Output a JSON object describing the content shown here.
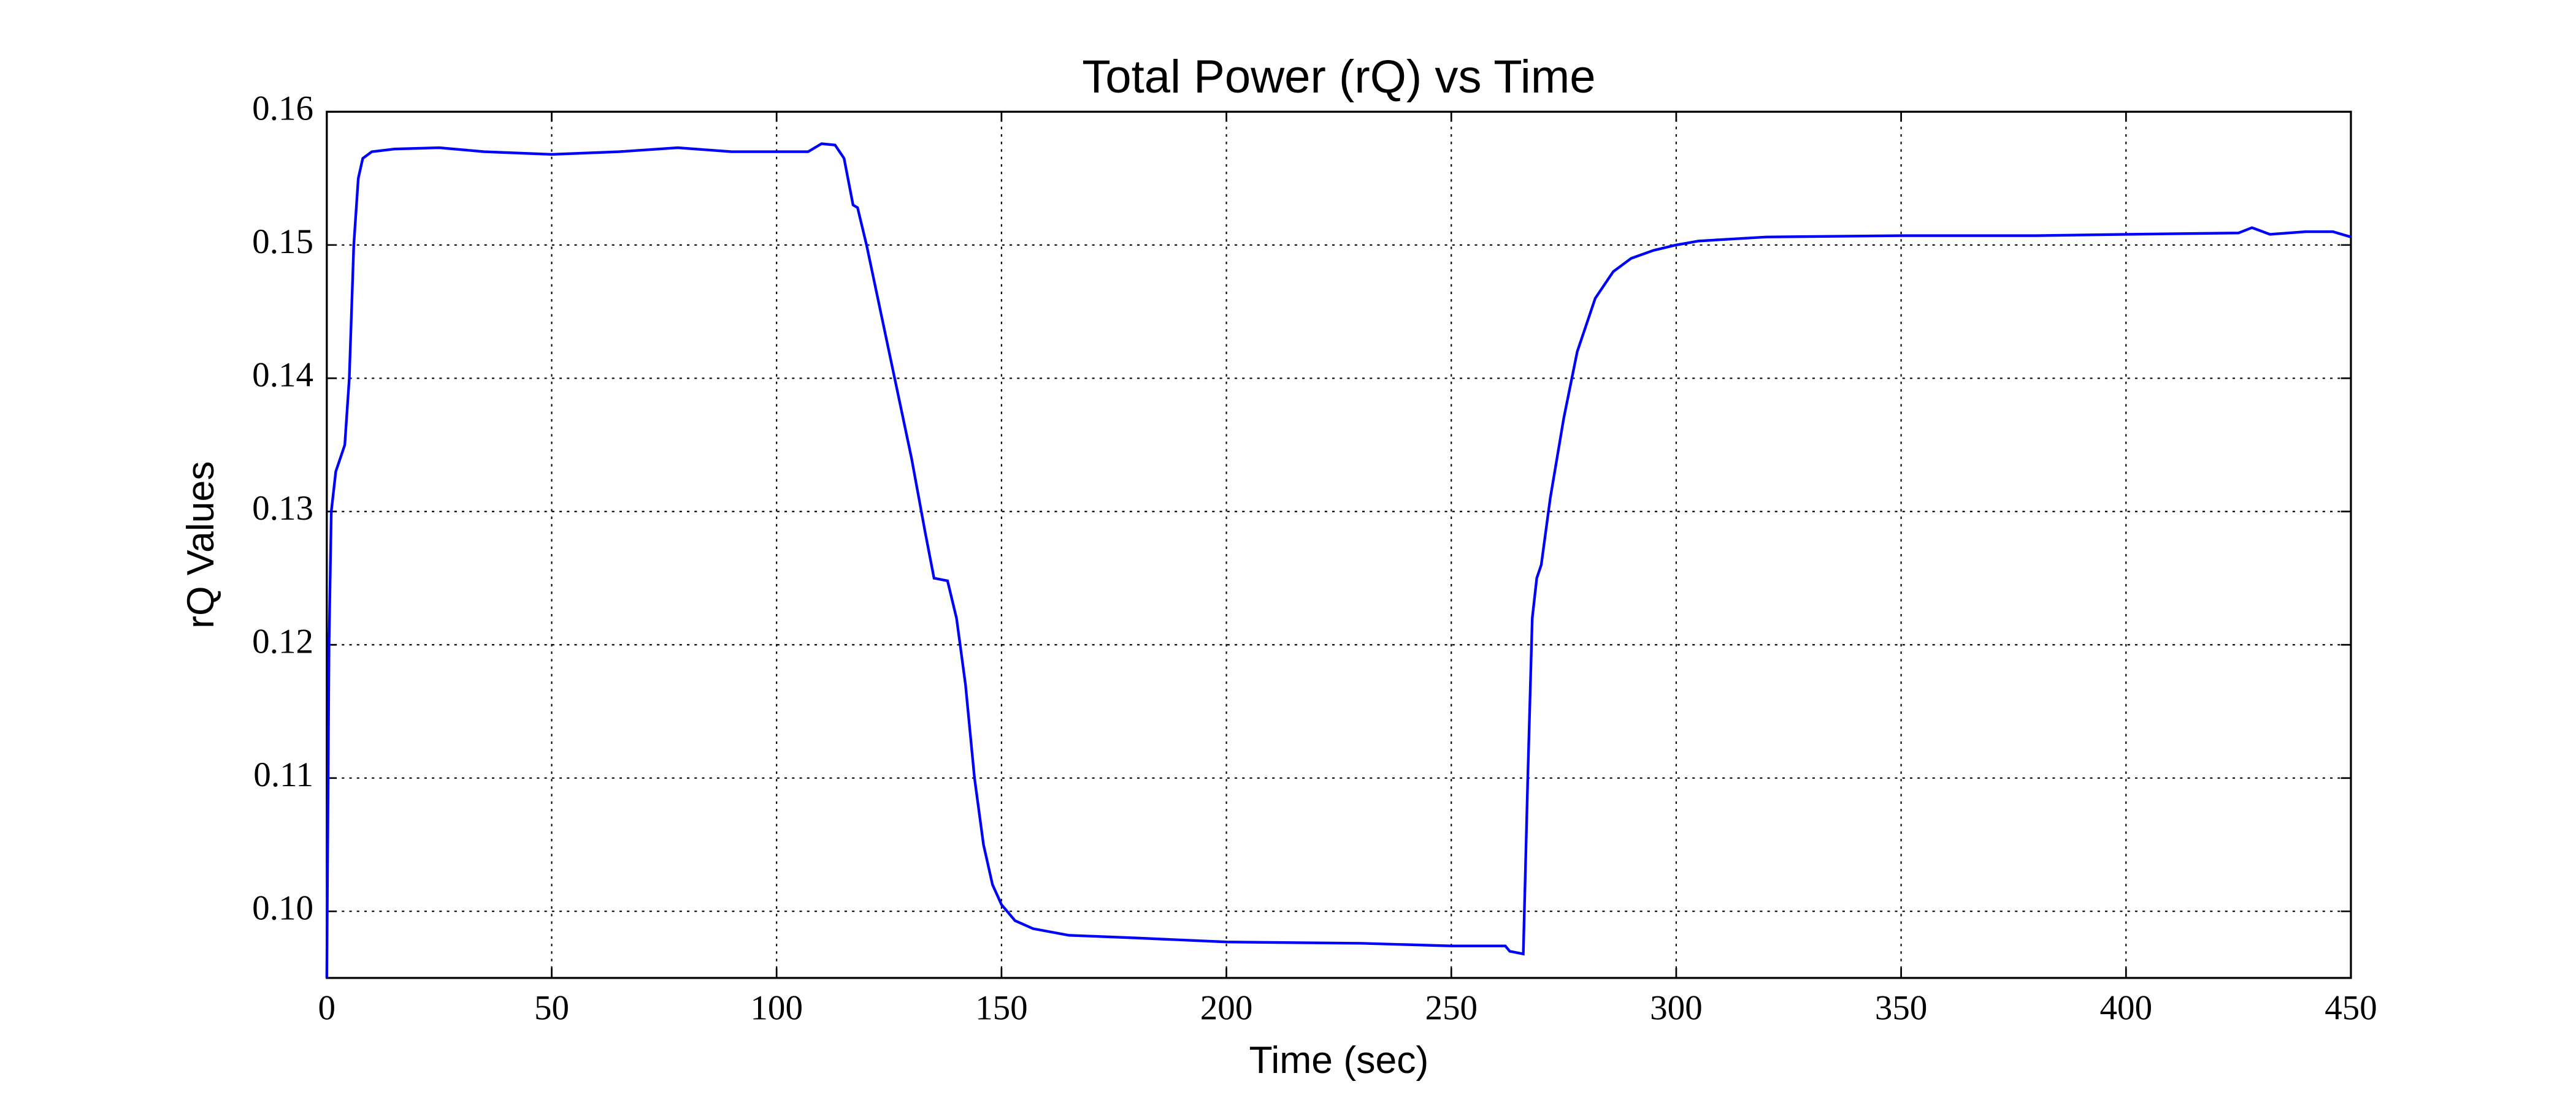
{
  "chart_data": {
    "type": "line",
    "title": "Total Power (rQ) vs Time",
    "x_label": "Time (sec)",
    "y_label": "rQ Values",
    "x": [
      0,
      0.5,
      1,
      2,
      3,
      4,
      5,
      6,
      7,
      8,
      10,
      15,
      25,
      35,
      50,
      65,
      78,
      90,
      100,
      107,
      110,
      113,
      115,
      117,
      118,
      120,
      125,
      130,
      133,
      135,
      138,
      140,
      142,
      144,
      146,
      148,
      150,
      153,
      157,
      165,
      180,
      200,
      230,
      250,
      262,
      263,
      266,
      267,
      268,
      269,
      270,
      272,
      275,
      278,
      282,
      286,
      290,
      295,
      300,
      305,
      320,
      350,
      380,
      400,
      425,
      428,
      432,
      440,
      446,
      450
    ],
    "series": [
      {
        "name": "rQ",
        "color": "#0000ff",
        "values": [
          0.095,
          0.12,
          0.13,
          0.133,
          0.134,
          0.135,
          0.14,
          0.15,
          0.155,
          0.1565,
          0.157,
          0.1572,
          0.1573,
          0.157,
          0.1568,
          0.157,
          0.1573,
          0.157,
          0.157,
          0.157,
          0.1576,
          0.1575,
          0.1565,
          0.153,
          0.1528,
          0.15,
          0.142,
          0.134,
          0.1285,
          0.125,
          0.1248,
          0.122,
          0.117,
          0.11,
          0.105,
          0.102,
          0.1005,
          0.0993,
          0.0987,
          0.0982,
          0.098,
          0.0977,
          0.0976,
          0.0974,
          0.0974,
          0.097,
          0.0968,
          0.11,
          0.122,
          0.125,
          0.126,
          0.131,
          0.137,
          0.142,
          0.146,
          0.148,
          0.149,
          0.1496,
          0.15,
          0.1503,
          0.1506,
          0.1507,
          0.1507,
          0.1508,
          0.1509,
          0.1513,
          0.1508,
          0.151,
          0.151,
          0.1506
        ]
      }
    ],
    "xlim": [
      0,
      450
    ],
    "ylim": [
      0.095,
      0.16
    ],
    "xticks": [
      0,
      50,
      100,
      150,
      200,
      250,
      300,
      350,
      400,
      450
    ],
    "yticks": [
      {
        "value": 0.1,
        "label": "0.10"
      },
      0.11,
      0.12,
      0.13,
      0.14,
      0.15,
      0.16
    ],
    "grid": true
  }
}
